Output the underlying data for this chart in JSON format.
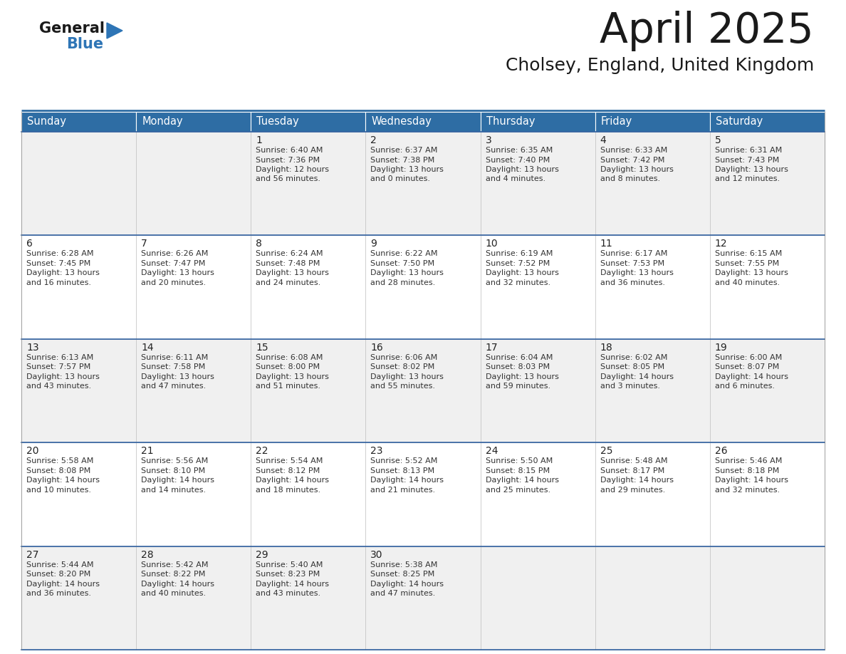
{
  "title": "April 2025",
  "subtitle": "Cholsey, England, United Kingdom",
  "days_of_week": [
    "Sunday",
    "Monday",
    "Tuesday",
    "Wednesday",
    "Thursday",
    "Friday",
    "Saturday"
  ],
  "header_bg": "#2E6DA4",
  "header_text": "#FFFFFF",
  "cell_bg_odd": "#F0F0F0",
  "cell_bg_even": "#FFFFFF",
  "logo_general_color": "#1a1a1a",
  "logo_blue_color": "#2E75B6",
  "title_color": "#1a1a1a",
  "subtitle_color": "#1a1a1a",
  "border_color": "#3060A0",
  "text_color": "#333333",
  "weeks": [
    [
      {
        "day": "",
        "lines": []
      },
      {
        "day": "",
        "lines": []
      },
      {
        "day": "1",
        "lines": [
          "Sunrise: 6:40 AM",
          "Sunset: 7:36 PM",
          "Daylight: 12 hours",
          "and 56 minutes."
        ]
      },
      {
        "day": "2",
        "lines": [
          "Sunrise: 6:37 AM",
          "Sunset: 7:38 PM",
          "Daylight: 13 hours",
          "and 0 minutes."
        ]
      },
      {
        "day": "3",
        "lines": [
          "Sunrise: 6:35 AM",
          "Sunset: 7:40 PM",
          "Daylight: 13 hours",
          "and 4 minutes."
        ]
      },
      {
        "day": "4",
        "lines": [
          "Sunrise: 6:33 AM",
          "Sunset: 7:42 PM",
          "Daylight: 13 hours",
          "and 8 minutes."
        ]
      },
      {
        "day": "5",
        "lines": [
          "Sunrise: 6:31 AM",
          "Sunset: 7:43 PM",
          "Daylight: 13 hours",
          "and 12 minutes."
        ]
      }
    ],
    [
      {
        "day": "6",
        "lines": [
          "Sunrise: 6:28 AM",
          "Sunset: 7:45 PM",
          "Daylight: 13 hours",
          "and 16 minutes."
        ]
      },
      {
        "day": "7",
        "lines": [
          "Sunrise: 6:26 AM",
          "Sunset: 7:47 PM",
          "Daylight: 13 hours",
          "and 20 minutes."
        ]
      },
      {
        "day": "8",
        "lines": [
          "Sunrise: 6:24 AM",
          "Sunset: 7:48 PM",
          "Daylight: 13 hours",
          "and 24 minutes."
        ]
      },
      {
        "day": "9",
        "lines": [
          "Sunrise: 6:22 AM",
          "Sunset: 7:50 PM",
          "Daylight: 13 hours",
          "and 28 minutes."
        ]
      },
      {
        "day": "10",
        "lines": [
          "Sunrise: 6:19 AM",
          "Sunset: 7:52 PM",
          "Daylight: 13 hours",
          "and 32 minutes."
        ]
      },
      {
        "day": "11",
        "lines": [
          "Sunrise: 6:17 AM",
          "Sunset: 7:53 PM",
          "Daylight: 13 hours",
          "and 36 minutes."
        ]
      },
      {
        "day": "12",
        "lines": [
          "Sunrise: 6:15 AM",
          "Sunset: 7:55 PM",
          "Daylight: 13 hours",
          "and 40 minutes."
        ]
      }
    ],
    [
      {
        "day": "13",
        "lines": [
          "Sunrise: 6:13 AM",
          "Sunset: 7:57 PM",
          "Daylight: 13 hours",
          "and 43 minutes."
        ]
      },
      {
        "day": "14",
        "lines": [
          "Sunrise: 6:11 AM",
          "Sunset: 7:58 PM",
          "Daylight: 13 hours",
          "and 47 minutes."
        ]
      },
      {
        "day": "15",
        "lines": [
          "Sunrise: 6:08 AM",
          "Sunset: 8:00 PM",
          "Daylight: 13 hours",
          "and 51 minutes."
        ]
      },
      {
        "day": "16",
        "lines": [
          "Sunrise: 6:06 AM",
          "Sunset: 8:02 PM",
          "Daylight: 13 hours",
          "and 55 minutes."
        ]
      },
      {
        "day": "17",
        "lines": [
          "Sunrise: 6:04 AM",
          "Sunset: 8:03 PM",
          "Daylight: 13 hours",
          "and 59 minutes."
        ]
      },
      {
        "day": "18",
        "lines": [
          "Sunrise: 6:02 AM",
          "Sunset: 8:05 PM",
          "Daylight: 14 hours",
          "and 3 minutes."
        ]
      },
      {
        "day": "19",
        "lines": [
          "Sunrise: 6:00 AM",
          "Sunset: 8:07 PM",
          "Daylight: 14 hours",
          "and 6 minutes."
        ]
      }
    ],
    [
      {
        "day": "20",
        "lines": [
          "Sunrise: 5:58 AM",
          "Sunset: 8:08 PM",
          "Daylight: 14 hours",
          "and 10 minutes."
        ]
      },
      {
        "day": "21",
        "lines": [
          "Sunrise: 5:56 AM",
          "Sunset: 8:10 PM",
          "Daylight: 14 hours",
          "and 14 minutes."
        ]
      },
      {
        "day": "22",
        "lines": [
          "Sunrise: 5:54 AM",
          "Sunset: 8:12 PM",
          "Daylight: 14 hours",
          "and 18 minutes."
        ]
      },
      {
        "day": "23",
        "lines": [
          "Sunrise: 5:52 AM",
          "Sunset: 8:13 PM",
          "Daylight: 14 hours",
          "and 21 minutes."
        ]
      },
      {
        "day": "24",
        "lines": [
          "Sunrise: 5:50 AM",
          "Sunset: 8:15 PM",
          "Daylight: 14 hours",
          "and 25 minutes."
        ]
      },
      {
        "day": "25",
        "lines": [
          "Sunrise: 5:48 AM",
          "Sunset: 8:17 PM",
          "Daylight: 14 hours",
          "and 29 minutes."
        ]
      },
      {
        "day": "26",
        "lines": [
          "Sunrise: 5:46 AM",
          "Sunset: 8:18 PM",
          "Daylight: 14 hours",
          "and 32 minutes."
        ]
      }
    ],
    [
      {
        "day": "27",
        "lines": [
          "Sunrise: 5:44 AM",
          "Sunset: 8:20 PM",
          "Daylight: 14 hours",
          "and 36 minutes."
        ]
      },
      {
        "day": "28",
        "lines": [
          "Sunrise: 5:42 AM",
          "Sunset: 8:22 PM",
          "Daylight: 14 hours",
          "and 40 minutes."
        ]
      },
      {
        "day": "29",
        "lines": [
          "Sunrise: 5:40 AM",
          "Sunset: 8:23 PM",
          "Daylight: 14 hours",
          "and 43 minutes."
        ]
      },
      {
        "day": "30",
        "lines": [
          "Sunrise: 5:38 AM",
          "Sunset: 8:25 PM",
          "Daylight: 14 hours",
          "and 47 minutes."
        ]
      },
      {
        "day": "",
        "lines": []
      },
      {
        "day": "",
        "lines": []
      },
      {
        "day": "",
        "lines": []
      }
    ]
  ]
}
